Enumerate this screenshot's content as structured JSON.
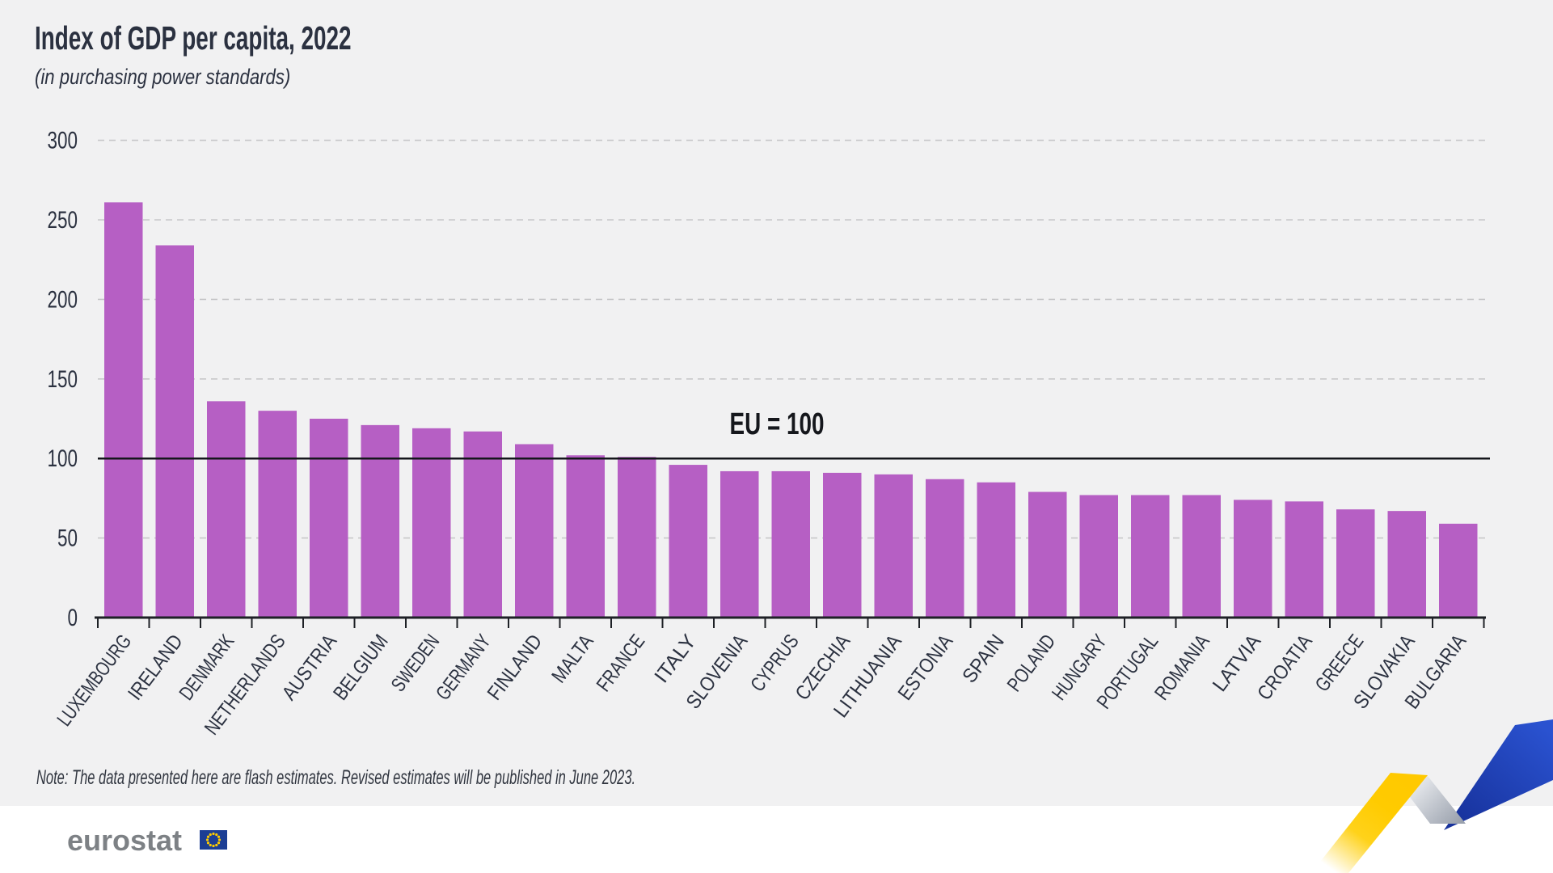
{
  "title": "Index of GDP per capita, 2022",
  "subtitle": "(in purchasing power standards)",
  "note": "Note: The data presented here are flash estimates. Revised estimates will be published in June 2023.",
  "logo": {
    "wordmark": "eurostat",
    "flag_icon": "eu-flag-icon"
  },
  "colors": {
    "background": "#f1f1f2",
    "footer_background": "#ffffff",
    "bar": "#b65fc4",
    "text": "#2b3140",
    "axis": "#1e2126",
    "gridline": "#c7c7c9",
    "reference_line": "#15171c",
    "logo_gray": "#7d8185",
    "flag_blue": "#1c3e94",
    "flag_stars": "#ffcc00",
    "ribbon_yellow": "#ffcc00",
    "ribbon_blue_dark": "#17329c",
    "ribbon_blue_light": "#2a52d0",
    "ribbon_gray_light": "#eef0f3",
    "ribbon_gray_dark": "#9aa1ad"
  },
  "chart_data": {
    "type": "bar",
    "title": "Index of GDP per capita, 2022",
    "subtitle": "(in purchasing power standards)",
    "categories": [
      "LUXEMBOURG",
      "IRELAND",
      "DENMARK",
      "NETHERLANDS",
      "AUSTRIA",
      "BELGIUM",
      "SWEDEN",
      "GERMANY",
      "FINLAND",
      "MALTA",
      "FRANCE",
      "ITALY",
      "SLOVENIA",
      "CYPRUS",
      "CZECHIA",
      "LITHUANIA",
      "ESTONIA",
      "SPAIN",
      "POLAND",
      "HUNGARY",
      "PORTUGAL",
      "ROMANIA",
      "LATVIA",
      "CROATIA",
      "GREECE",
      "SLOVAKIA",
      "BULGARIA"
    ],
    "values": [
      261,
      234,
      136,
      130,
      125,
      121,
      119,
      117,
      109,
      102,
      101,
      96,
      92,
      92,
      91,
      90,
      87,
      85,
      79,
      77,
      77,
      77,
      74,
      73,
      68,
      67,
      59
    ],
    "ylim": [
      0,
      300
    ],
    "yticks": [
      0,
      50,
      100,
      150,
      200,
      250,
      300
    ],
    "xlabel": "",
    "ylabel": "",
    "grid": "horizontal-dashed",
    "legend": "none",
    "bar_color": "#b65fc4",
    "reference_line": {
      "value": 100,
      "label": "EU = 100"
    }
  }
}
